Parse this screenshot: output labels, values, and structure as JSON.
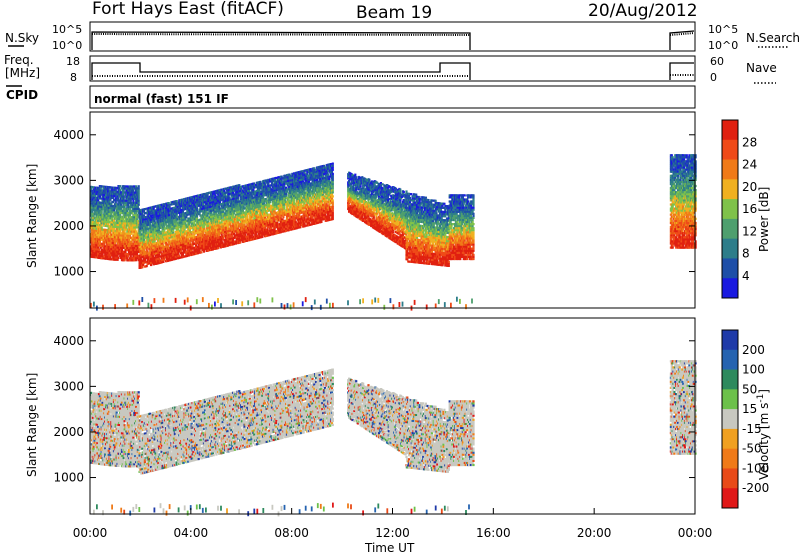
{
  "header": {
    "station": "Fort Hays East (fitACF)",
    "beam": "Beam 19",
    "date": "20/Aug/2012"
  },
  "top_panels": {
    "nsky_label": "N.Sky",
    "nsearch_label": "N.Search",
    "noise_ticks_left": [
      "10^5",
      "10^0"
    ],
    "noise_ticks_right": [
      "10^5",
      "10^0"
    ],
    "freq_label": "Freq.",
    "freq_unit": "[MHz]",
    "freq_ticks": [
      "18",
      "8"
    ],
    "nave_label": "Nave",
    "nave_ticks": [
      "60",
      "0"
    ],
    "cpid_label": "CPID",
    "cpid_value": "normal (fast) 151 IF"
  },
  "colors": {
    "power": [
      "#1a1ae0",
      "#1e4fa8",
      "#2d7d8a",
      "#4e9f6e",
      "#7fc24a",
      "#f0b020",
      "#f07a18",
      "#ef4a18",
      "#e02010"
    ],
    "velocity": [
      "#1f3aa8",
      "#2563b0",
      "#2e8a5e",
      "#6cc04a",
      "#c8c8c0",
      "#f0a020",
      "#ef7a18",
      "#e84a18",
      "#e01818"
    ]
  },
  "chart_data": [
    {
      "type": "heatmap",
      "name": "power",
      "ylabel": "Slant Range [km]",
      "ylim": [
        200,
        4500
      ],
      "yticks": [
        1000,
        2000,
        3000,
        4000
      ],
      "xlim": [
        0,
        24
      ],
      "xticks": [
        "00:00",
        "04:00",
        "08:00",
        "12:00",
        "16:00",
        "20:00",
        "00:00"
      ],
      "colorbar_label": "Power [dB]",
      "colorbar_ticks": [
        "4",
        "8",
        "12",
        "16",
        "20",
        "24",
        "28"
      ],
      "segments": [
        [
          0,
          9.6
        ],
        [
          10.2,
          15.2
        ],
        [
          23.0,
          24.0
        ]
      ]
    },
    {
      "type": "heatmap",
      "name": "velocity",
      "ylabel": "Slant Range [km]",
      "ylim": [
        200,
        4500
      ],
      "yticks": [
        1000,
        2000,
        3000,
        4000
      ],
      "xlim": [
        0,
        24
      ],
      "xticks": [
        "00:00",
        "04:00",
        "08:00",
        "12:00",
        "16:00",
        "20:00",
        "00:00"
      ],
      "xlabel": "Time UT",
      "colorbar_label": "Velocity [m s",
      "colorbar_label_sup": "-1",
      "colorbar_label_end": "]",
      "colorbar_ticks": [
        "200",
        "100",
        "50",
        "15",
        "-15",
        "-50",
        "-100",
        "-200"
      ],
      "segments": [
        [
          0,
          9.6
        ],
        [
          10.2,
          15.2
        ],
        [
          23.0,
          24.0
        ]
      ]
    }
  ]
}
